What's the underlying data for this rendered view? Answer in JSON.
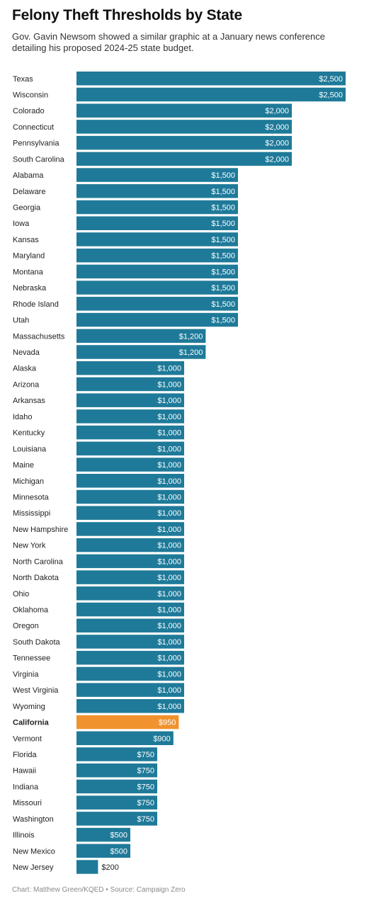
{
  "header": {
    "title": "Felony Theft Thresholds by State",
    "subtitle": "Gov. Gavin Newsom showed a similar graphic at a January news conference detailing his proposed 2024-25 state budget."
  },
  "footer": {
    "credit": "Chart: Matthew Green/KQED • Source: Campaign Zero"
  },
  "colors": {
    "bar": "#1f7a99",
    "highlight": "#f0922e",
    "text": "#222222"
  },
  "chart_data": {
    "type": "bar",
    "orientation": "horizontal",
    "unit_prefix": "$",
    "highlight": "California",
    "xlim": [
      0,
      2500
    ],
    "grid": false,
    "categories": [
      "Texas",
      "Wisconsin",
      "Colorado",
      "Connecticut",
      "Pennsylvania",
      "South Carolina",
      "Alabama",
      "Delaware",
      "Georgia",
      "Iowa",
      "Kansas",
      "Maryland",
      "Montana",
      "Nebraska",
      "Rhode Island",
      "Utah",
      "Massachusetts",
      "Nevada",
      "Alaska",
      "Arizona",
      "Arkansas",
      "Idaho",
      "Kentucky",
      "Louisiana",
      "Maine",
      "Michigan",
      "Minnesota",
      "Mississippi",
      "New Hampshire",
      "New York",
      "North Carolina",
      "North Dakota",
      "Ohio",
      "Oklahoma",
      "Oregon",
      "South Dakota",
      "Tennessee",
      "Virginia",
      "West Virginia",
      "Wyoming",
      "California",
      "Vermont",
      "Florida",
      "Hawaii",
      "Indiana",
      "Missouri",
      "Washington",
      "Illinois",
      "New Mexico",
      "New Jersey"
    ],
    "values": [
      2500,
      2500,
      2000,
      2000,
      2000,
      2000,
      1500,
      1500,
      1500,
      1500,
      1500,
      1500,
      1500,
      1500,
      1500,
      1500,
      1200,
      1200,
      1000,
      1000,
      1000,
      1000,
      1000,
      1000,
      1000,
      1000,
      1000,
      1000,
      1000,
      1000,
      1000,
      1000,
      1000,
      1000,
      1000,
      1000,
      1000,
      1000,
      1000,
      1000,
      950,
      900,
      750,
      750,
      750,
      750,
      750,
      500,
      500,
      200
    ],
    "value_labels": [
      "$2,500",
      "$2,500",
      "$2,000",
      "$2,000",
      "$2,000",
      "$2,000",
      "$1,500",
      "$1,500",
      "$1,500",
      "$1,500",
      "$1,500",
      "$1,500",
      "$1,500",
      "$1,500",
      "$1,500",
      "$1,500",
      "$1,200",
      "$1,200",
      "$1,000",
      "$1,000",
      "$1,000",
      "$1,000",
      "$1,000",
      "$1,000",
      "$1,000",
      "$1,000",
      "$1,000",
      "$1,000",
      "$1,000",
      "$1,000",
      "$1,000",
      "$1,000",
      "$1,000",
      "$1,000",
      "$1,000",
      "$1,000",
      "$1,000",
      "$1,000",
      "$1,000",
      "$1,000",
      "$950",
      "$900",
      "$750",
      "$750",
      "$750",
      "$750",
      "$750",
      "$500",
      "$500",
      "$200"
    ]
  }
}
